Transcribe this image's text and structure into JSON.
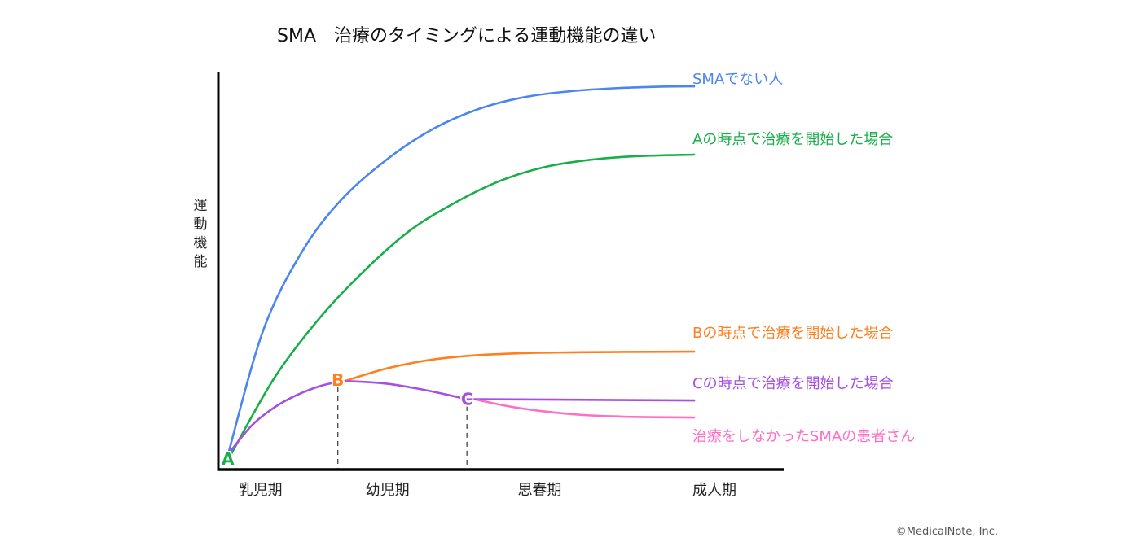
{
  "chart_data": {
    "type": "line",
    "title": "SMA　治療のタイミングによる運動機能の違い",
    "ylabel": "運動機能",
    "xlabel": "",
    "xlim": [
      0,
      100
    ],
    "ylim": [
      0,
      100
    ],
    "grid": false,
    "x_ticks": [
      {
        "label": "乳児期",
        "x": 6
      },
      {
        "label": "幼児期",
        "x": 30
      },
      {
        "label": "思春期",
        "x": 57
      },
      {
        "label": "成人期",
        "x": 88
      }
    ],
    "markers": [
      {
        "label": "A",
        "x": 1.7,
        "y": 2.5,
        "color": "#1aae4a"
      },
      {
        "label": "B",
        "x": 21.2,
        "y": 22.3,
        "color": "#ff7f1e"
      },
      {
        "label": "C",
        "x": 44.1,
        "y": 17.5,
        "color": "#a64fe0"
      }
    ],
    "guides": [
      {
        "x": 21.2,
        "y_from": 0,
        "y_to": 20.5
      },
      {
        "x": 44.1,
        "y_from": 0,
        "y_to": 15.8
      }
    ],
    "series": [
      {
        "name": "SMAでない人",
        "color": "#4a86ee",
        "x": [
          1.7,
          8,
          15,
          22,
          30,
          38,
          46,
          54,
          62,
          70,
          78,
          84.4
        ],
        "y": [
          3.5,
          35,
          55,
          68,
          78,
          85.5,
          90.5,
          93.5,
          95,
          95.8,
          96.2,
          96.3
        ]
      },
      {
        "name": "Aの時点で治療を開始した場合",
        "color": "#1aae4a",
        "x": [
          2.2,
          10,
          18,
          26,
          34,
          42,
          50,
          58,
          66,
          74,
          84.4
        ],
        "y": [
          3.5,
          23,
          38,
          50,
          60,
          67,
          72.5,
          76,
          77.8,
          78.7,
          79.1
        ]
      },
      {
        "name": "Bの時点で治療を開始した場合",
        "color": "#ff7f1e",
        "x": [
          22.5,
          30,
          38,
          46,
          54,
          62,
          70,
          84.4
        ],
        "y": [
          22.1,
          25.3,
          27.5,
          28.6,
          29.1,
          29.3,
          29.4,
          29.5
        ]
      },
      {
        "name": "Cの時点で治療を開始した場合",
        "color": "#a64fe0",
        "x": [
          2.2,
          6,
          10,
          14,
          18,
          21.2,
          24,
          30,
          36,
          42,
          44.1,
          46.1,
          60,
          84.4
        ],
        "y": [
          4.5,
          11,
          15.5,
          18.6,
          20.8,
          21.8,
          22,
          21.4,
          20,
          18.2,
          17.5,
          17.5,
          17.4,
          17.2
        ]
      },
      {
        "name": "治療をしなかったSMAの患者さん",
        "color": "#ff6ec4",
        "x": [
          46.1,
          52,
          58,
          64,
          70,
          76,
          84.4
        ],
        "y": [
          17.3,
          15.6,
          14.4,
          13.6,
          13.2,
          13.0,
          12.9
        ]
      }
    ],
    "legend_placement": "right (labels at line ends)"
  },
  "credit": "©MedicalNote, Inc."
}
